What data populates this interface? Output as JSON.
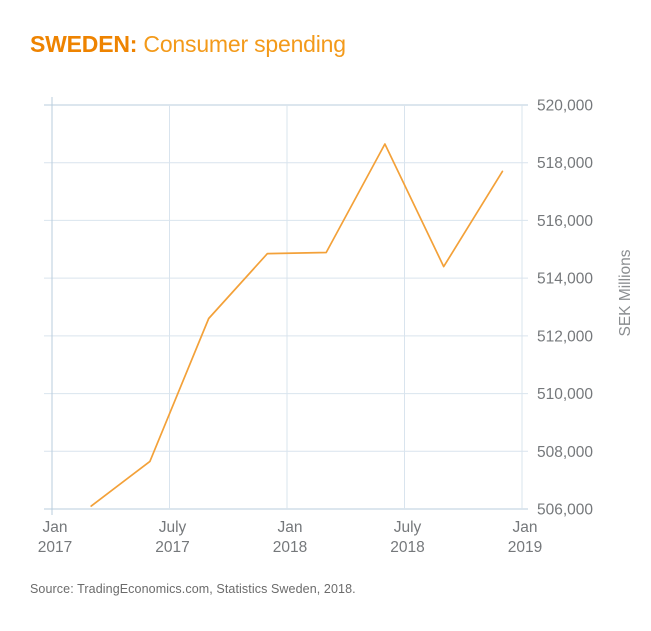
{
  "header": {
    "brand": "SWEDEN:",
    "title_rest": "Consumer spending"
  },
  "source": {
    "text": "Source: TradingEconomics.com, Statistics Sweden, 2018."
  },
  "colors": {
    "title_bold": "#ee8300",
    "title_rest": "#f39a1a",
    "line": "#f3a139",
    "grid": "#d9e4ee",
    "axis": "#b9cdde",
    "tick_text": "#75787b",
    "axis_label_text": "#8a8d90",
    "source_text": "#6b6b6b",
    "background": "#ffffff"
  },
  "chart_data": {
    "type": "line",
    "title": "SWEDEN: Consumer spending",
    "xlabel": "",
    "ylabel": "SEK Millions",
    "ylim": [
      506000,
      520000
    ],
    "xlim_months": [
      0,
      24
    ],
    "x_origin": "Jan 2017",
    "grid": true,
    "legend": "none",
    "y_ticks": [
      {
        "value": 506000,
        "label": "506,000"
      },
      {
        "value": 508000,
        "label": "508,000"
      },
      {
        "value": 510000,
        "label": "510,000"
      },
      {
        "value": 512000,
        "label": "512,000"
      },
      {
        "value": 514000,
        "label": "514,000"
      },
      {
        "value": 516000,
        "label": "516,000"
      },
      {
        "value": 518000,
        "label": "518,000"
      },
      {
        "value": 520000,
        "label": "520,000"
      }
    ],
    "x_ticks": [
      {
        "month": 0,
        "line1": "Jan",
        "line2": "2017"
      },
      {
        "month": 6,
        "line1": "July",
        "line2": "2017"
      },
      {
        "month": 12,
        "line1": "Jan",
        "line2": "2018"
      },
      {
        "month": 18,
        "line1": "July",
        "line2": "2018"
      },
      {
        "month": 24,
        "line1": "Jan",
        "line2": "2019"
      }
    ],
    "series": [
      {
        "name": "Consumer spending",
        "unit": "SEK Millions",
        "x_months": [
          2,
          5,
          8,
          11,
          14,
          17,
          20,
          23
        ],
        "x_labels": [
          "Mar 2017",
          "Jun 2017",
          "Sep 2017",
          "Dec 2017",
          "Mar 2018",
          "Jun 2018",
          "Sep 2018",
          "Dec 2018"
        ],
        "values": [
          506100,
          507650,
          512600,
          514850,
          514890,
          518650,
          514400,
          517700
        ]
      }
    ]
  }
}
